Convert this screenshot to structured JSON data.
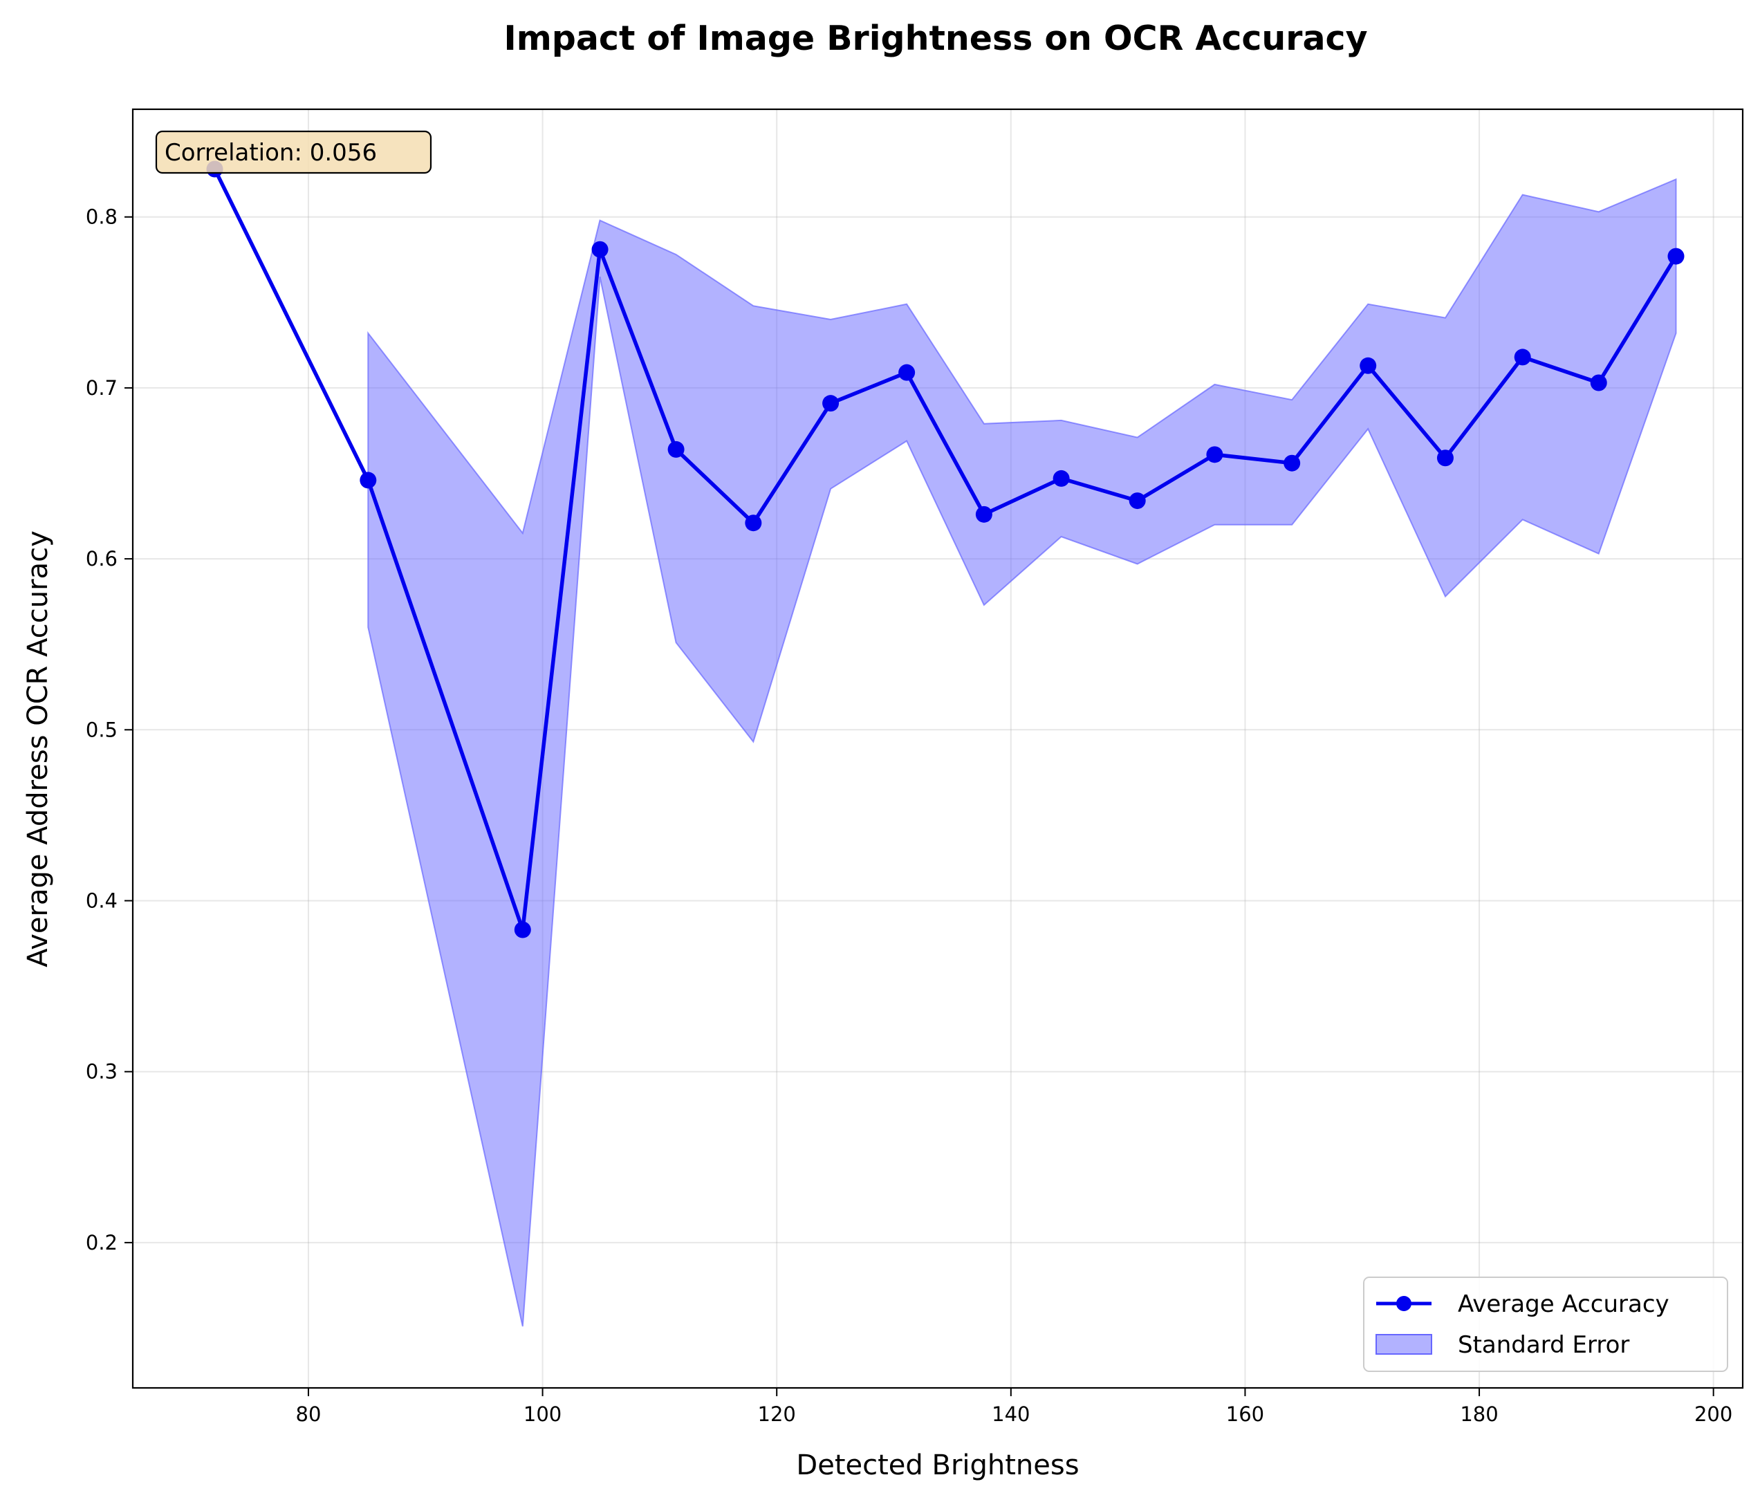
{
  "chart_data": {
    "type": "line",
    "title": "Impact of Image Brightness on OCR Accuracy",
    "xlabel": "Detected Brightness",
    "ylabel": "Average Address OCR Accuracy",
    "xlim": [
      65,
      202.5
    ],
    "ylim": [
      0.115,
      0.863
    ],
    "xticks": [
      80,
      100,
      120,
      140,
      160,
      180,
      200
    ],
    "xtick_labels": [
      "80",
      "100",
      "120",
      "140",
      "160",
      "180",
      "200"
    ],
    "yticks": [
      0.2,
      0.3,
      0.4,
      0.5,
      0.6,
      0.7,
      0.8
    ],
    "ytick_labels": [
      "0.2",
      "0.3",
      "0.4",
      "0.5",
      "0.6",
      "0.7",
      "0.8"
    ],
    "grid": true,
    "legend_position": "lower-right",
    "series": [
      {
        "name": "Average Accuracy",
        "color": "#0000ee",
        "x": [
          72.0,
          85.1,
          98.3,
          104.9,
          111.4,
          118.0,
          124.6,
          131.1,
          137.7,
          144.3,
          150.8,
          157.4,
          164.0,
          170.5,
          177.1,
          183.7,
          190.2,
          196.8
        ],
        "y": [
          0.828,
          0.646,
          0.383,
          0.781,
          0.664,
          0.621,
          0.691,
          0.709,
          0.626,
          0.647,
          0.634,
          0.661,
          0.656,
          0.713,
          0.659,
          0.718,
          0.703,
          0.777
        ]
      }
    ],
    "error_band": {
      "name": "Standard Error",
      "color": "#6666ff",
      "x": [
        85.1,
        98.3,
        104.9,
        111.4,
        118.0,
        124.6,
        131.1,
        137.7,
        144.3,
        150.8,
        157.4,
        164.0,
        170.5,
        177.1,
        183.7,
        190.2,
        196.8
      ],
      "upper": [
        0.732,
        0.615,
        0.798,
        0.778,
        0.748,
        0.74,
        0.749,
        0.679,
        0.681,
        0.671,
        0.702,
        0.693,
        0.749,
        0.741,
        0.813,
        0.803,
        0.822
      ],
      "lower": [
        0.56,
        0.151,
        0.765,
        0.551,
        0.493,
        0.641,
        0.669,
        0.573,
        0.613,
        0.597,
        0.62,
        0.62,
        0.676,
        0.578,
        0.623,
        0.603,
        0.732
      ]
    },
    "annotation": {
      "text": "Correlation: 0.056",
      "position": "top-left",
      "background": "#f5deb3"
    }
  }
}
